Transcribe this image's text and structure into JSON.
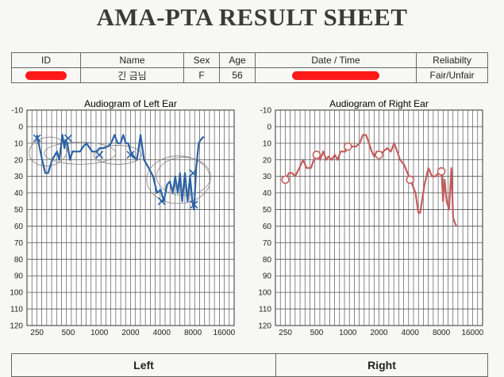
{
  "sheet_title": "AMA-PTA RESULT SHEET",
  "info": {
    "headers": {
      "id": "ID",
      "name": "Name",
      "sex": "Sex",
      "age": "Age",
      "datetime": "Date / Time",
      "reliability": "Reliabilty"
    },
    "values": {
      "name": "긴 금님",
      "sex": "F",
      "age": "56",
      "reliability": "Fair/Unfair"
    }
  },
  "bottom": {
    "left": "Left",
    "right": "Right"
  },
  "colors": {
    "left_series": "#2a62a6",
    "right_series": "#c45c5c",
    "redaction": "#ff1a1a",
    "annotation": "#8a8a8a"
  },
  "chart_data": [
    {
      "type": "line",
      "title": "Audiogram of Left Ear",
      "xscale": "log",
      "xticks": [
        "250",
        "500",
        "1000",
        "2000",
        "4000",
        "8000",
        "16000"
      ],
      "xtick_values": [
        250,
        500,
        1000,
        2000,
        4000,
        8000,
        16000
      ],
      "xlim": [
        200,
        20000
      ],
      "yticks": [
        "-10",
        "0",
        "10",
        "20",
        "30",
        "40",
        "50",
        "60",
        "70",
        "80",
        "90",
        "100",
        "110",
        "120"
      ],
      "ylim": [
        -10,
        120
      ],
      "y_inverted": true,
      "grid": true,
      "series": [
        {
          "marker": "none",
          "points": [
            [
              250,
              5
            ],
            [
              280,
              20
            ],
            [
              300,
              28
            ],
            [
              320,
              28
            ],
            [
              350,
              20
            ],
            [
              390,
              15
            ],
            [
              410,
              20
            ],
            [
              440,
              5
            ],
            [
              460,
              13
            ],
            [
              470,
              8
            ],
            [
              490,
              10
            ],
            [
              520,
              20
            ],
            [
              550,
              15
            ],
            [
              650,
              15
            ],
            [
              700,
              12
            ],
            [
              750,
              10
            ],
            [
              850,
              15
            ],
            [
              950,
              15
            ],
            [
              1000,
              13
            ],
            [
              1100,
              13
            ],
            [
              1200,
              12
            ],
            [
              1300,
              10
            ],
            [
              1400,
              5
            ],
            [
              1500,
              10
            ],
            [
              1600,
              10
            ],
            [
              1700,
              5
            ],
            [
              1800,
              10
            ],
            [
              1900,
              10
            ],
            [
              2000,
              15
            ],
            [
              2150,
              18
            ],
            [
              2300,
              20
            ],
            [
              2500,
              5
            ],
            [
              2700,
              20
            ],
            [
              3000,
              25
            ],
            [
              3300,
              30
            ],
            [
              3600,
              40
            ],
            [
              3900,
              38
            ],
            [
              4200,
              45
            ],
            [
              4500,
              35
            ],
            [
              4800,
              33
            ],
            [
              5100,
              40
            ],
            [
              5400,
              30
            ],
            [
              5700,
              40
            ],
            [
              6000,
              28
            ],
            [
              6300,
              45
            ],
            [
              6700,
              28
            ],
            [
              7100,
              45
            ],
            [
              7500,
              30
            ],
            [
              7900,
              45
            ],
            [
              8200,
              50
            ],
            [
              8600,
              25
            ],
            [
              9100,
              10
            ],
            [
              9500,
              8
            ],
            [
              9800,
              7
            ],
            [
              10200,
              6
            ]
          ]
        }
      ],
      "markers": {
        "symbol": "x",
        "points": [
          [
            250,
            7
          ],
          [
            500,
            7
          ],
          [
            1000,
            17
          ],
          [
            2000,
            17
          ],
          [
            4000,
            45
          ],
          [
            8000,
            28
          ],
          [
            8200,
            47
          ]
        ]
      }
    },
    {
      "type": "line",
      "title": "Audiogram of Right Ear",
      "xscale": "log",
      "xticks": [
        "250",
        "500",
        "1000",
        "2000",
        "4000",
        "8000",
        "16000"
      ],
      "xtick_values": [
        250,
        500,
        1000,
        2000,
        4000,
        8000,
        16000
      ],
      "xlim": [
        200,
        20000
      ],
      "yticks": [
        "-10",
        "0",
        "10",
        "20",
        "30",
        "40",
        "50",
        "60",
        "70",
        "80",
        "90",
        "100",
        "110",
        "120"
      ],
      "ylim": [
        -10,
        120
      ],
      "y_inverted": true,
      "grid": true,
      "series": [
        {
          "marker": "none",
          "points": [
            [
              250,
              32
            ],
            [
              270,
              28
            ],
            [
              290,
              28
            ],
            [
              310,
              30
            ],
            [
              340,
              25
            ],
            [
              370,
              20
            ],
            [
              400,
              25
            ],
            [
              440,
              25
            ],
            [
              470,
              20
            ],
            [
              500,
              17
            ],
            [
              540,
              20
            ],
            [
              580,
              15
            ],
            [
              620,
              20
            ],
            [
              650,
              18
            ],
            [
              700,
              20
            ],
            [
              750,
              17
            ],
            [
              800,
              20
            ],
            [
              850,
              15
            ],
            [
              900,
              15
            ],
            [
              950,
              15
            ],
            [
              1000,
              12
            ],
            [
              1100,
              12
            ],
            [
              1200,
              12
            ],
            [
              1300,
              10
            ],
            [
              1400,
              5
            ],
            [
              1500,
              5
            ],
            [
              1600,
              10
            ],
            [
              1700,
              15
            ],
            [
              1800,
              18
            ],
            [
              1900,
              15
            ],
            [
              2000,
              18
            ],
            [
              2200,
              15
            ],
            [
              2400,
              13
            ],
            [
              2600,
              15
            ],
            [
              2800,
              10
            ],
            [
              3000,
              15
            ],
            [
              3200,
              20
            ],
            [
              3500,
              23
            ],
            [
              4000,
              32
            ],
            [
              4200,
              35
            ],
            [
              4500,
              40
            ],
            [
              4800,
              52
            ],
            [
              5000,
              52
            ],
            [
              5500,
              35
            ],
            [
              6000,
              25
            ],
            [
              6500,
              30
            ],
            [
              7000,
              30
            ],
            [
              7500,
              28
            ],
            [
              8000,
              25
            ],
            [
              8300,
              45
            ],
            [
              8600,
              32
            ],
            [
              9000,
              45
            ],
            [
              9500,
              50
            ],
            [
              10000,
              25
            ],
            [
              10400,
              55
            ],
            [
              10800,
              58
            ],
            [
              11200,
              60
            ]
          ]
        }
      ],
      "markers": {
        "symbol": "o",
        "points": [
          [
            250,
            32
          ],
          [
            500,
            17
          ],
          [
            1000,
            12
          ],
          [
            2000,
            17
          ],
          [
            4000,
            32
          ],
          [
            8000,
            27
          ]
        ]
      }
    }
  ]
}
